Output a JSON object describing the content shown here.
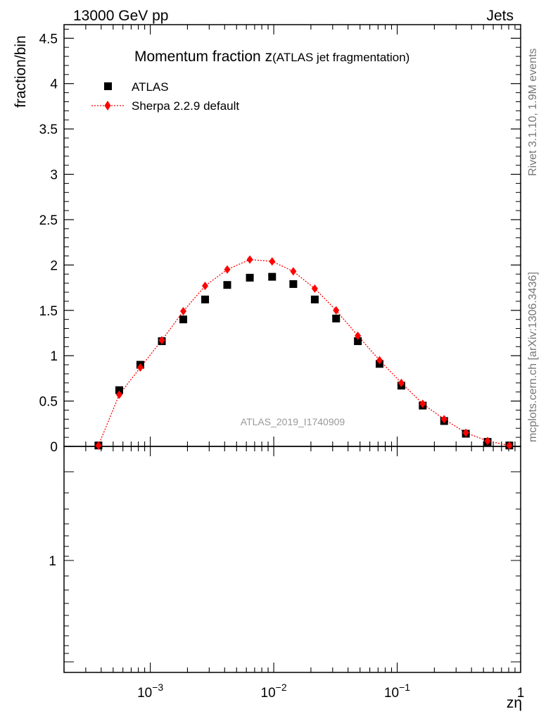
{
  "header": {
    "left": "13000 GeV pp",
    "right": "Jets"
  },
  "side_labels": {
    "rivet": "Rivet 3.1.10,  1.9M events",
    "mcplots": "mcplots.cern.ch [arXiv:1306.3436]"
  },
  "chart_data": {
    "type": "scatter",
    "title_main": "Momentum fraction z",
    "title_sub": "(ATLAS jet fragmentation)",
    "watermark": "ATLAS_2019_I1740909",
    "ylabel": "fraction/bin",
    "xlabel": "zη",
    "xscale": "log",
    "xlim": [
      0.0002,
      1
    ],
    "ylim": [
      0,
      4.65
    ],
    "x_tick_labels": [
      {
        "base": "10",
        "exp": "−3",
        "value": 0.001
      },
      {
        "base": "10",
        "exp": "−2",
        "value": 0.01
      },
      {
        "base": "10",
        "exp": "−1",
        "value": 0.1
      },
      {
        "base": "1",
        "exp": "",
        "value": 1
      }
    ],
    "y_ticks": [
      0,
      0.5,
      1,
      1.5,
      2,
      2.5,
      3,
      3.5,
      4,
      4.5
    ],
    "y_tick_labels": [
      "0",
      "0.5",
      "1",
      "1.5",
      "2",
      "2.5",
      "3",
      "3.5",
      "4",
      "4.5"
    ],
    "ratio_ylabel_tick": "1",
    "legend_position": "top-left",
    "series": [
      {
        "name": "ATLAS",
        "marker": "square",
        "color": "#000000",
        "x": [
          0.00038,
          0.00056,
          0.00083,
          0.00124,
          0.00185,
          0.00278,
          0.0042,
          0.0064,
          0.0097,
          0.0144,
          0.0215,
          0.032,
          0.048,
          0.072,
          0.108,
          0.161,
          0.24,
          0.36,
          0.54,
          0.81
        ],
        "y": [
          0.01,
          0.62,
          0.9,
          1.16,
          1.4,
          1.62,
          1.78,
          1.86,
          1.87,
          1.79,
          1.62,
          1.41,
          1.16,
          0.91,
          0.67,
          0.45,
          0.28,
          0.14,
          0.05,
          0.01
        ]
      },
      {
        "name": "Sherpa 2.2.9 default",
        "marker": "diamond",
        "line": "dotted",
        "color": "#ff0000",
        "x": [
          0.00038,
          0.00056,
          0.00083,
          0.00124,
          0.00185,
          0.00278,
          0.0042,
          0.0064,
          0.0097,
          0.0144,
          0.0215,
          0.032,
          0.048,
          0.072,
          0.108,
          0.161,
          0.24,
          0.36,
          0.54,
          0.81
        ],
        "y": [
          0.01,
          0.57,
          0.87,
          1.17,
          1.49,
          1.77,
          1.95,
          2.06,
          2.04,
          1.93,
          1.74,
          1.5,
          1.22,
          0.95,
          0.7,
          0.47,
          0.3,
          0.15,
          0.06,
          0.01
        ]
      }
    ]
  }
}
